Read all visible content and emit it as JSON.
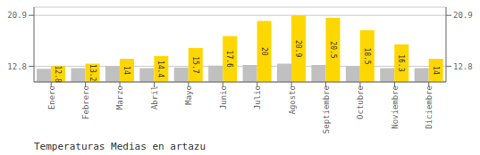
{
  "chart_data": {
    "type": "bar",
    "title": "Temperaturas Medias en artazu",
    "categories": [
      "Enero",
      "Febrero",
      "Marzo",
      "Abril",
      "Mayo",
      "Junio",
      "Julio",
      "Agosto",
      "Septiembre",
      "Octubre",
      "Noviembre",
      "Diciembre"
    ],
    "series": [
      {
        "color": "#C0C0C0",
        "values": [
          12.4,
          12.5,
          12.8,
          12.5,
          12.6,
          12.9,
          13.0,
          13.2,
          13.0,
          12.8,
          12.5,
          12.5
        ]
      },
      {
        "color": "#FFD700",
        "values": [
          12.8,
          13.2,
          14.0,
          14.4,
          15.7,
          17.6,
          20.0,
          20.9,
          20.5,
          18.5,
          16.3,
          14.0
        ],
        "data_labels": true
      }
    ],
    "ylim": [
      10.3,
      22.2
    ],
    "yticks": [
      12.8,
      20.9
    ],
    "grid": true
  }
}
